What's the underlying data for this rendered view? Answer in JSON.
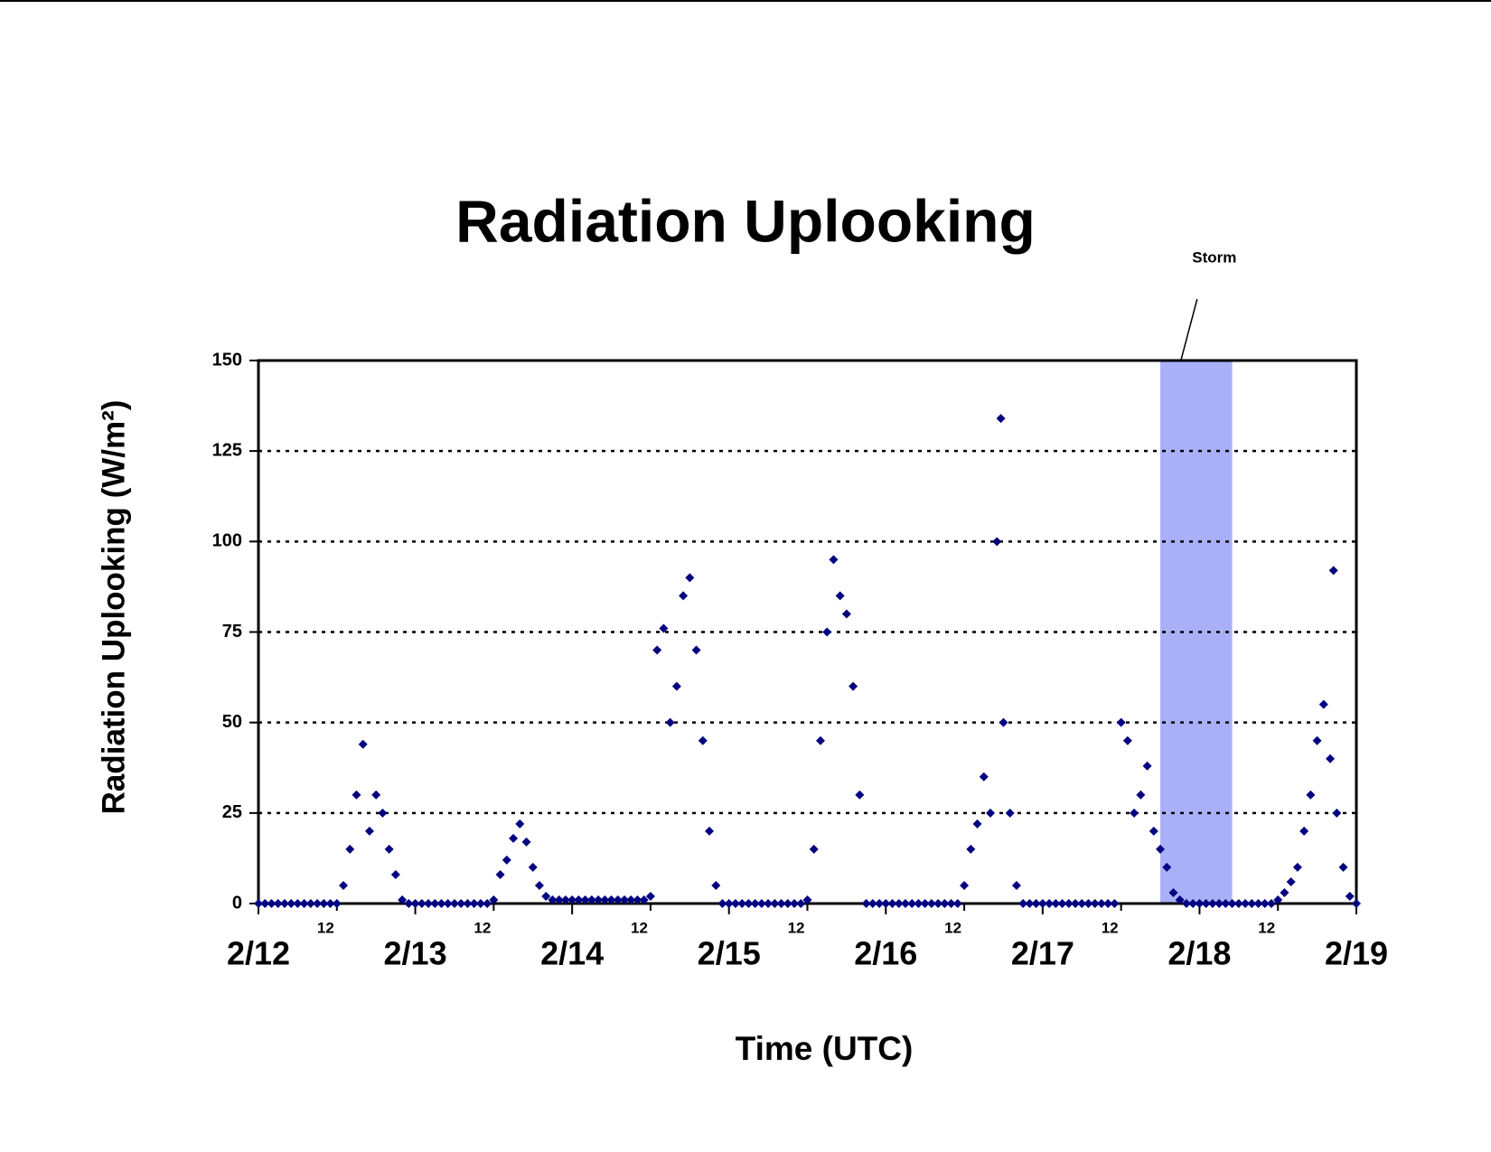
{
  "chart_data": {
    "type": "scatter",
    "title": "Radiation Uplooking",
    "x_label": "Time (UTC)",
    "y_label": "Radiation Uplooking (W/m²)",
    "series": [
      {
        "name": "Radiation Uplooking",
        "color": "#000080",
        "x": [
          0,
          1,
          2,
          3,
          4,
          5,
          6,
          7,
          8,
          9,
          10,
          11,
          12,
          13,
          14,
          15,
          16,
          17,
          18,
          19,
          20,
          21,
          22,
          23,
          24,
          25,
          26,
          27,
          28,
          29,
          30,
          31,
          32,
          33,
          34,
          35,
          36,
          37,
          38,
          39,
          40,
          41,
          42,
          43,
          44,
          45,
          46,
          47,
          48,
          49,
          50,
          51,
          52,
          53,
          54,
          55,
          56,
          57,
          58,
          59,
          60,
          61,
          62,
          63,
          64,
          65,
          66,
          67,
          68,
          69,
          70,
          71,
          72,
          73,
          74,
          75,
          76,
          77,
          78,
          79,
          80,
          81,
          82,
          83,
          84,
          85,
          86,
          87,
          88,
          89,
          90,
          91,
          92,
          93,
          94,
          95,
          96,
          97,
          98,
          99,
          100,
          101,
          102,
          103,
          104,
          105,
          106,
          107,
          108,
          109,
          110,
          111,
          112,
          113,
          113.6,
          114,
          115,
          116,
          117,
          118,
          119,
          120,
          121,
          122,
          123,
          124,
          125,
          126,
          127,
          128,
          129,
          130,
          131,
          132,
          133,
          134,
          135,
          136,
          137,
          138,
          139,
          140,
          141,
          142,
          143,
          144,
          145,
          146,
          147,
          148,
          149,
          150,
          151,
          152,
          153,
          154,
          155,
          156,
          157,
          158,
          159,
          160,
          161,
          162,
          163,
          164,
          164.5,
          165,
          166,
          167,
          168
        ],
        "values": [
          0,
          0,
          0,
          0,
          0,
          0,
          0,
          0,
          0,
          0,
          0,
          0,
          0,
          5,
          15,
          30,
          44,
          20,
          30,
          25,
          15,
          8,
          1,
          0,
          0,
          0,
          0,
          0,
          0,
          0,
          0,
          0,
          0,
          0,
          0,
          0,
          1,
          8,
          12,
          18,
          22,
          17,
          10,
          5,
          2,
          1,
          1,
          1,
          1,
          1,
          1,
          1,
          1,
          1,
          1,
          1,
          1,
          1,
          1,
          1,
          2,
          70,
          76,
          50,
          60,
          85,
          90,
          70,
          45,
          20,
          5,
          0,
          0,
          0,
          0,
          0,
          0,
          0,
          0,
          0,
          0,
          0,
          0,
          0,
          1,
          15,
          45,
          75,
          95,
          85,
          80,
          60,
          30,
          0,
          0,
          0,
          0,
          0,
          0,
          0,
          0,
          0,
          0,
          0,
          0,
          0,
          0,
          0,
          5,
          15,
          22,
          35,
          25,
          100,
          134,
          50,
          25,
          5,
          0,
          0,
          0,
          0,
          0,
          0,
          0,
          0,
          0,
          0,
          0,
          0,
          0,
          0,
          0,
          50,
          45,
          25,
          30,
          38,
          20,
          15,
          10,
          3,
          1,
          0,
          0,
          0,
          0,
          0,
          0,
          0,
          0,
          0,
          0,
          0,
          0,
          0,
          0,
          1,
          3,
          6,
          10,
          20,
          30,
          45,
          55,
          40,
          92,
          25,
          10,
          2,
          0
        ]
      }
    ],
    "xlim": [
      0,
      168
    ],
    "xticks": [
      {
        "value": 0,
        "label": "2/12"
      },
      {
        "value": 12,
        "label": "12"
      },
      {
        "value": 24,
        "label": "2/13"
      },
      {
        "value": 36,
        "label": "12"
      },
      {
        "value": 48,
        "label": "2/14"
      },
      {
        "value": 60,
        "label": "12"
      },
      {
        "value": 72,
        "label": "2/15"
      },
      {
        "value": 84,
        "label": "12"
      },
      {
        "value": 96,
        "label": "2/16"
      },
      {
        "value": 108,
        "label": "12"
      },
      {
        "value": 120,
        "label": "2/17"
      },
      {
        "value": 132,
        "label": "12"
      },
      {
        "value": 144,
        "label": "2/18"
      },
      {
        "value": 156,
        "label": "12"
      },
      {
        "value": 168,
        "label": "2/19"
      }
    ],
    "ylim": [
      0,
      150
    ],
    "yticks": [
      0,
      25,
      50,
      75,
      100,
      125,
      150
    ],
    "grid": true,
    "annotations": [
      {
        "text": "Storm",
        "x_range": [
          138,
          149
        ],
        "color": "#aab0f8"
      }
    ]
  }
}
